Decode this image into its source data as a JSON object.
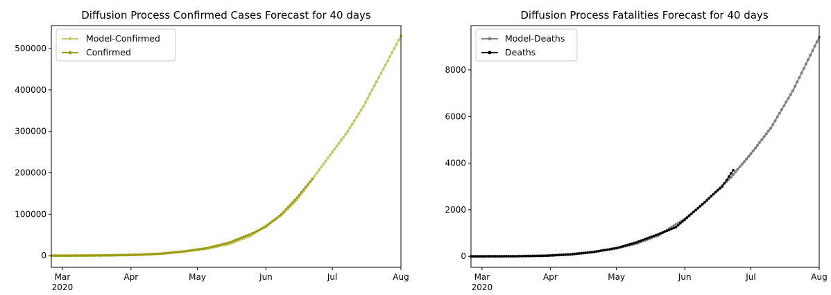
{
  "chart_data": [
    {
      "type": "line",
      "title": "Diffusion Process Confirmed Cases Forecast for 40 days",
      "xlabel": "",
      "ylabel": "",
      "x_range": [
        "2020-02-25",
        "2020-08-01"
      ],
      "ylim": [
        -28000,
        555000
      ],
      "x_ticks": [
        {
          "date": "2020-03-01",
          "label": "Mar",
          "sub": "2020"
        },
        {
          "date": "2020-04-01",
          "label": "Apr",
          "sub": ""
        },
        {
          "date": "2020-05-01",
          "label": "May",
          "sub": ""
        },
        {
          "date": "2020-06-01",
          "label": "Jun",
          "sub": ""
        },
        {
          "date": "2020-07-01",
          "label": "Jul",
          "sub": ""
        },
        {
          "date": "2020-08-01",
          "label": "Aug",
          "sub": ""
        }
      ],
      "y_ticks": [
        0,
        100000,
        200000,
        300000,
        400000,
        500000
      ],
      "y_tick_labels": [
        "0",
        "100000",
        "200000",
        "300000",
        "400000",
        "500000"
      ],
      "legend_position": "upper-left",
      "series": [
        {
          "name": "Model-Confirmed",
          "color": "#c8c86a",
          "points": [
            [
              "2020-02-25",
              0
            ],
            [
              "2020-03-10",
              300
            ],
            [
              "2020-03-25",
              1200
            ],
            [
              "2020-04-05",
              2500
            ],
            [
              "2020-04-15",
              5000
            ],
            [
              "2020-04-25",
              10000
            ],
            [
              "2020-05-05",
              17000
            ],
            [
              "2020-05-15",
              28000
            ],
            [
              "2020-05-25",
              48000
            ],
            [
              "2020-06-01",
              72000
            ],
            [
              "2020-06-08",
              98000
            ],
            [
              "2020-06-15",
              135000
            ],
            [
              "2020-06-22",
              185000
            ],
            [
              "2020-07-01",
              250000
            ],
            [
              "2020-07-08",
              300000
            ],
            [
              "2020-07-15",
              360000
            ],
            [
              "2020-07-22",
              430000
            ],
            [
              "2020-08-01",
              530000
            ]
          ]
        },
        {
          "name": "Confirmed",
          "color": "#9c9c10",
          "points": [
            [
              "2020-02-25",
              0
            ],
            [
              "2020-03-10",
              200
            ],
            [
              "2020-03-25",
              1000
            ],
            [
              "2020-04-05",
              2200
            ],
            [
              "2020-04-15",
              5000
            ],
            [
              "2020-04-25",
              10500
            ],
            [
              "2020-05-05",
              18000
            ],
            [
              "2020-05-15",
              31000
            ],
            [
              "2020-05-25",
              52000
            ],
            [
              "2020-06-01",
              70000
            ],
            [
              "2020-06-08",
              100000
            ],
            [
              "2020-06-15",
              140000
            ],
            [
              "2020-06-22",
              185000
            ]
          ]
        }
      ]
    },
    {
      "type": "line",
      "title": "Diffusion Process Fatalities Forecast for 40 days",
      "xlabel": "",
      "ylabel": "",
      "x_range": [
        "2020-02-25",
        "2020-08-01"
      ],
      "ylim": [
        -470,
        9900
      ],
      "x_ticks": [
        {
          "date": "2020-03-01",
          "label": "Mar",
          "sub": "2020"
        },
        {
          "date": "2020-04-01",
          "label": "Apr",
          "sub": ""
        },
        {
          "date": "2020-05-01",
          "label": "May",
          "sub": ""
        },
        {
          "date": "2020-06-01",
          "label": "Jun",
          "sub": ""
        },
        {
          "date": "2020-07-01",
          "label": "Jul",
          "sub": ""
        },
        {
          "date": "2020-08-01",
          "label": "Aug",
          "sub": ""
        }
      ],
      "y_ticks": [
        0,
        2000,
        4000,
        6000,
        8000
      ],
      "y_tick_labels": [
        "0",
        "2000",
        "4000",
        "6000",
        "8000"
      ],
      "legend_position": "upper-left",
      "series": [
        {
          "name": "Model-Deaths",
          "color": "#808080",
          "points": [
            [
              "2020-02-25",
              0
            ],
            [
              "2020-03-15",
              5
            ],
            [
              "2020-03-30",
              30
            ],
            [
              "2020-04-10",
              90
            ],
            [
              "2020-04-20",
              180
            ],
            [
              "2020-05-01",
              350
            ],
            [
              "2020-05-10",
              550
            ],
            [
              "2020-05-20",
              900
            ],
            [
              "2020-06-01",
              1600
            ],
            [
              "2020-06-10",
              2300
            ],
            [
              "2020-06-22",
              3400
            ],
            [
              "2020-07-01",
              4400
            ],
            [
              "2020-07-10",
              5500
            ],
            [
              "2020-07-20",
              7100
            ],
            [
              "2020-08-01",
              9400
            ]
          ]
        },
        {
          "name": "Deaths",
          "color": "#000000",
          "points": [
            [
              "2020-02-25",
              0
            ],
            [
              "2020-03-15",
              3
            ],
            [
              "2020-03-30",
              25
            ],
            [
              "2020-04-10",
              80
            ],
            [
              "2020-04-20",
              180
            ],
            [
              "2020-05-01",
              350
            ],
            [
              "2020-05-10",
              600
            ],
            [
              "2020-05-20",
              950
            ],
            [
              "2020-05-28",
              1250
            ],
            [
              "2020-06-05",
              1900
            ],
            [
              "2020-06-12",
              2500
            ],
            [
              "2020-06-18",
              3000
            ],
            [
              "2020-06-23",
              3700
            ]
          ]
        }
      ]
    }
  ]
}
